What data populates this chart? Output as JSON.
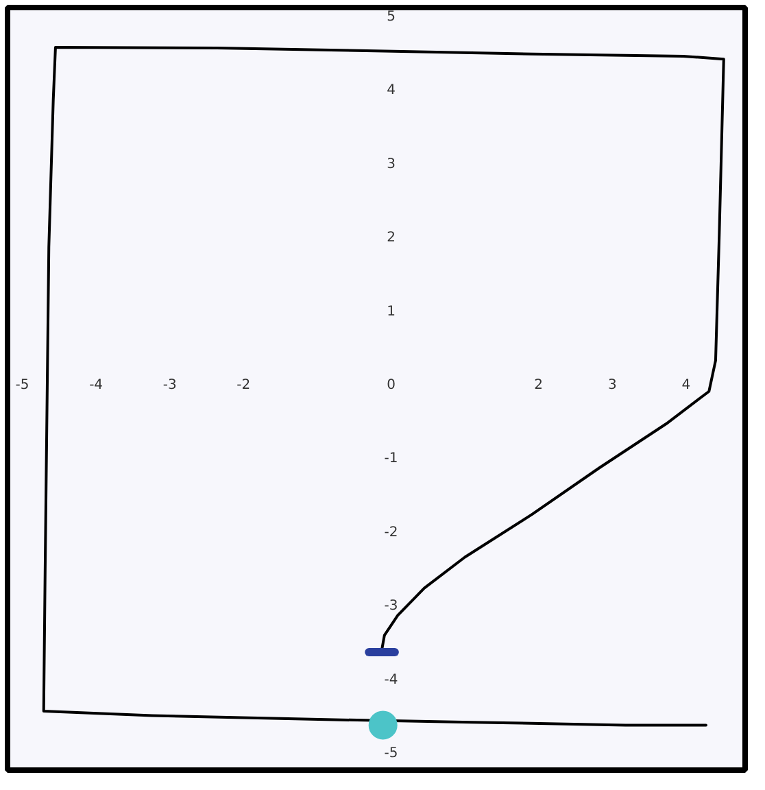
{
  "chart_data": {
    "type": "line",
    "xlim": [
      -5.2,
      4.8
    ],
    "ylim": [
      -5.25,
      5.1
    ],
    "xticks": [
      -5,
      -4,
      -3,
      -2,
      2,
      3,
      4
    ],
    "yticks": [
      -5,
      -4,
      -3,
      -2,
      -1,
      0,
      1,
      2,
      3,
      4,
      5
    ],
    "grid": false,
    "series": [
      {
        "color": "#000000",
        "x": [
          -0.13,
          -0.09,
          0.09,
          0.45,
          1.0,
          1.91,
          2.82,
          3.73,
          4.31,
          4.4,
          4.45,
          4.51,
          3.96,
          1.91,
          -0.09,
          -2.36,
          -4.55,
          -4.58,
          -4.64,
          -4.69,
          -4.71,
          -3.24,
          -1.09,
          1.09,
          3.18,
          4.27
        ],
        "values": [
          -3.64,
          -3.42,
          -3.15,
          -2.78,
          -2.36,
          -1.78,
          -1.15,
          -0.55,
          -0.11,
          0.31,
          2.04,
          4.4,
          4.44,
          4.47,
          4.51,
          4.55,
          4.56,
          3.85,
          1.85,
          -2.51,
          -4.45,
          -4.51,
          -4.56,
          -4.6,
          -4.64,
          -4.64
        ]
      },
      {
        "type": "line",
        "color": "#2a3f9e",
        "x": [
          -0.3,
          0.05
        ],
        "values": [
          -3.65,
          -3.65
        ]
      },
      {
        "type": "scatter",
        "marker": "circle",
        "color": "#4cc4c8",
        "x": [
          -0.11
        ],
        "values": [
          -4.64
        ]
      }
    ]
  }
}
